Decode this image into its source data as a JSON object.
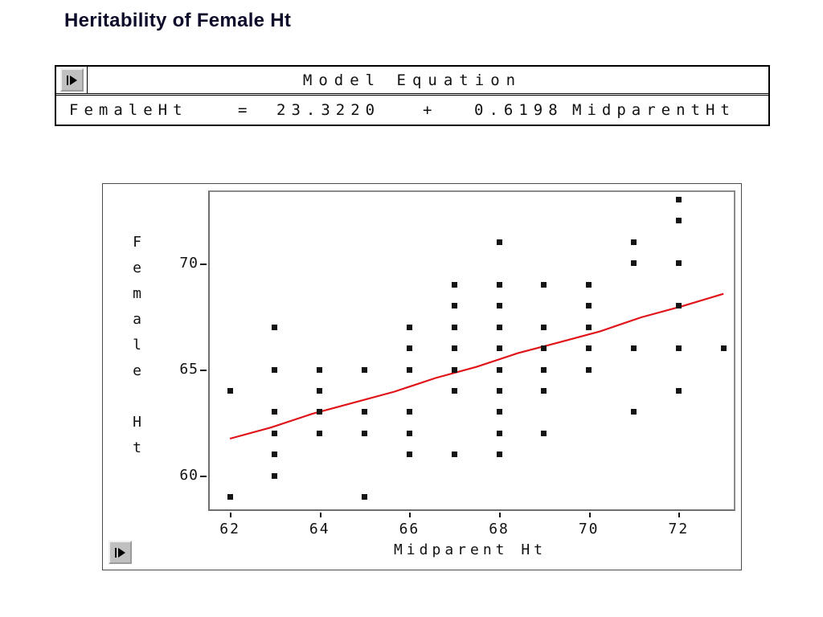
{
  "title": "Heritability of Female Ht",
  "equation_table": {
    "header": "Model Equation",
    "terms": {
      "lhs": "FemaleHt",
      "equals": "=",
      "intercept": "23.3220",
      "plus": "+",
      "slope": "0.6198",
      "predictor": "MidparentHt"
    }
  },
  "icons": {
    "top_toggle": "play-icon",
    "bottom_toggle": "play-icon"
  },
  "chart_data": {
    "type": "scatter",
    "title": "",
    "xlabel": "Midparent Ht",
    "ylabel": "Female Ht",
    "x_ticks": [
      62,
      64,
      66,
      68,
      70,
      72
    ],
    "y_ticks": [
      70,
      65,
      60
    ],
    "xlim": [
      61.55,
      73.23
    ],
    "ylim": [
      58.42,
      73.36
    ],
    "grid": false,
    "legend": "none",
    "marker": "square",
    "marker_color": "#141414",
    "points": [
      [
        62,
        64
      ],
      [
        62,
        59
      ],
      [
        63,
        67
      ],
      [
        63,
        65
      ],
      [
        63,
        63
      ],
      [
        63,
        62
      ],
      [
        63,
        61
      ],
      [
        63,
        60
      ],
      [
        64,
        65
      ],
      [
        64,
        64
      ],
      [
        64,
        63
      ],
      [
        64,
        62
      ],
      [
        65,
        65
      ],
      [
        65,
        63
      ],
      [
        65,
        62
      ],
      [
        65,
        59
      ],
      [
        66,
        67
      ],
      [
        66,
        66
      ],
      [
        66,
        65
      ],
      [
        66,
        63
      ],
      [
        66,
        62
      ],
      [
        66,
        61
      ],
      [
        67,
        69
      ],
      [
        67,
        68
      ],
      [
        67,
        67
      ],
      [
        67,
        66
      ],
      [
        67,
        65
      ],
      [
        67,
        64
      ],
      [
        67,
        61
      ],
      [
        68,
        71
      ],
      [
        68,
        69
      ],
      [
        68,
        68
      ],
      [
        68,
        67
      ],
      [
        68,
        66
      ],
      [
        68,
        65
      ],
      [
        68,
        64
      ],
      [
        68,
        63
      ],
      [
        68,
        62
      ],
      [
        68,
        61
      ],
      [
        69,
        69
      ],
      [
        69,
        67
      ],
      [
        69,
        66
      ],
      [
        69,
        65
      ],
      [
        69,
        64
      ],
      [
        69,
        62
      ],
      [
        70,
        69
      ],
      [
        70,
        68
      ],
      [
        70,
        67
      ],
      [
        70,
        66
      ],
      [
        70,
        65
      ],
      [
        71,
        71
      ],
      [
        71,
        70
      ],
      [
        71,
        66
      ],
      [
        71,
        63
      ],
      [
        72,
        73
      ],
      [
        72,
        72
      ],
      [
        72,
        70
      ],
      [
        72,
        68
      ],
      [
        72,
        66
      ],
      [
        72,
        64
      ],
      [
        73,
        66
      ]
    ],
    "fit_line": {
      "type": "linear",
      "intercept": 23.322,
      "slope": 0.6198,
      "x_start": 62,
      "x_end": 73,
      "color": "#e01418"
    }
  }
}
